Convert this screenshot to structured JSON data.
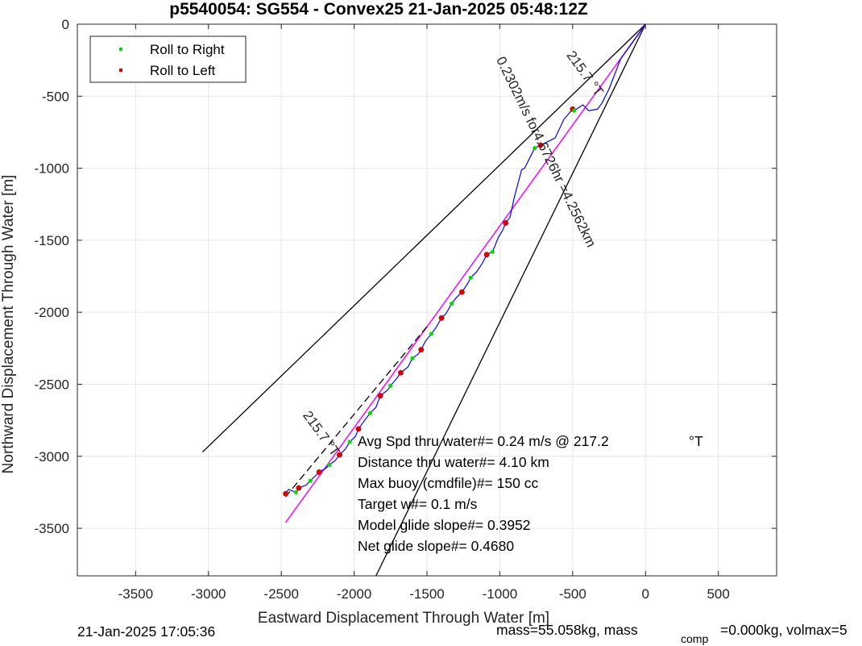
{
  "chart_data": {
    "type": "line",
    "title": "p5540054: SG554 - Convex25 21-Jan-2025 05:48:12Z",
    "xlabel": "Eastward Displacement Through Water [m]",
    "ylabel": "Northward Displacement Through Water [m]",
    "xlim": [
      -3900,
      900
    ],
    "ylim": [
      -3830,
      0
    ],
    "xticks": [
      -3500,
      -3000,
      -2500,
      -2000,
      -1500,
      -1000,
      -500,
      0,
      500
    ],
    "yticks": [
      0,
      -500,
      -1000,
      -1500,
      -2000,
      -2500,
      -3000,
      -3500
    ],
    "grid": true,
    "legend": {
      "location": "top-left",
      "entries": [
        {
          "label": "Roll to Right",
          "color": "#00e000"
        },
        {
          "label": "Roll to Left",
          "color": "#e00000"
        }
      ]
    },
    "track": {
      "color": "#0000ff",
      "x": [
        0,
        -170,
        -250,
        -300,
        -330,
        -390,
        -430,
        -490,
        -500,
        -560,
        -620,
        -680,
        -720,
        -760,
        -790,
        -830,
        -850,
        -900,
        -930,
        -960,
        -980,
        -1010,
        -1050,
        -1090,
        -1120,
        -1160,
        -1200,
        -1220,
        -1260,
        -1300,
        -1330,
        -1370,
        -1400,
        -1440,
        -1470,
        -1510,
        -1540,
        -1560,
        -1600,
        -1630,
        -1680,
        -1700,
        -1750,
        -1770,
        -1820,
        -1850,
        -1890,
        -1920,
        -1970,
        -1990,
        -2030,
        -2060,
        -2100,
        -2130,
        -2170,
        -2190,
        -2240,
        -2260,
        -2300,
        -2330,
        -2380,
        -2400,
        -2450,
        -2470
      ],
      "y": [
        0,
        -240,
        -450,
        -550,
        -590,
        -600,
        -560,
        -600,
        -590,
        -660,
        -790,
        -820,
        -840,
        -860,
        -920,
        -1000,
        -1010,
        -1200,
        -1340,
        -1380,
        -1430,
        -1480,
        -1580,
        -1600,
        -1660,
        -1720,
        -1760,
        -1800,
        -1860,
        -1900,
        -1940,
        -2010,
        -2040,
        -2110,
        -2150,
        -2200,
        -2260,
        -2290,
        -2320,
        -2380,
        -2420,
        -2450,
        -2510,
        -2540,
        -2580,
        -2660,
        -2700,
        -2740,
        -2810,
        -2860,
        -2900,
        -2950,
        -2990,
        -3030,
        -3060,
        -3080,
        -3110,
        -3130,
        -3170,
        -3200,
        -3220,
        -3250,
        -3230,
        -3260
      ]
    },
    "roll_right_points": [
      {
        "x": -490,
        "y": -600
      },
      {
        "x": -760,
        "y": -860
      },
      {
        "x": -1050,
        "y": -1580
      },
      {
        "x": -1200,
        "y": -1760
      },
      {
        "x": -1330,
        "y": -1940
      },
      {
        "x": -1470,
        "y": -2150
      },
      {
        "x": -1600,
        "y": -2320
      },
      {
        "x": -1750,
        "y": -2510
      },
      {
        "x": -1890,
        "y": -2700
      },
      {
        "x": -2030,
        "y": -2900
      },
      {
        "x": -2170,
        "y": -3060
      },
      {
        "x": -2300,
        "y": -3170
      },
      {
        "x": -2400,
        "y": -3250
      }
    ],
    "roll_left_points": [
      {
        "x": -500,
        "y": -590
      },
      {
        "x": -720,
        "y": -840
      },
      {
        "x": -960,
        "y": -1380
      },
      {
        "x": -1090,
        "y": -1600
      },
      {
        "x": -1260,
        "y": -1860
      },
      {
        "x": -1400,
        "y": -2040
      },
      {
        "x": -1540,
        "y": -2260
      },
      {
        "x": -1680,
        "y": -2420
      },
      {
        "x": -1820,
        "y": -2580
      },
      {
        "x": -1970,
        "y": -2810
      },
      {
        "x": -2100,
        "y": -2990
      },
      {
        "x": -2240,
        "y": -3110
      },
      {
        "x": -2380,
        "y": -3220
      },
      {
        "x": -2470,
        "y": -3260
      }
    ],
    "heading_line": {
      "color": "#ff00ff",
      "x": [
        0,
        -2470
      ],
      "y": [
        0,
        -3460
      ]
    },
    "dashed_line": {
      "color": "#000000",
      "x": [
        -1500,
        -2470
      ],
      "y": [
        -2100,
        -3280
      ]
    },
    "wedge_lines": [
      {
        "x": [
          0,
          -3040
        ],
        "y": [
          0,
          -2970
        ]
      },
      {
        "x": [
          0,
          -1850
        ],
        "y": [
          0,
          -3830
        ]
      }
    ],
    "line_labels": [
      {
        "text": "215.7 °T",
        "x": -440,
        "y": -360,
        "rotation": 54
      },
      {
        "text": "215.7 °T",
        "x": -2250,
        "y": -2860,
        "rotation": 54
      },
      {
        "text": "0.2302m/s for4.6726hr =4.2562km",
        "x": -710,
        "y": -900,
        "rotation": 64
      }
    ],
    "annotations": [
      "Avg Spd thru water#=  0.24 m/s @ 217.2",
      "°T",
      "Distance thru water#=  4.10 km",
      "Max buoy (cmdfile)#= 150 cc",
      "Target w#= 0.1 m/s",
      "Model glide slope#= 0.3952",
      "Net glide slope#= 0.4680"
    ]
  },
  "footer": {
    "date": "21-Jan-2025 17:05:36",
    "mass_prefix": "mass=55.058kg, mass",
    "mass_sub": "comp",
    "mass_suffix": "=0.000kg, volmax=5"
  }
}
